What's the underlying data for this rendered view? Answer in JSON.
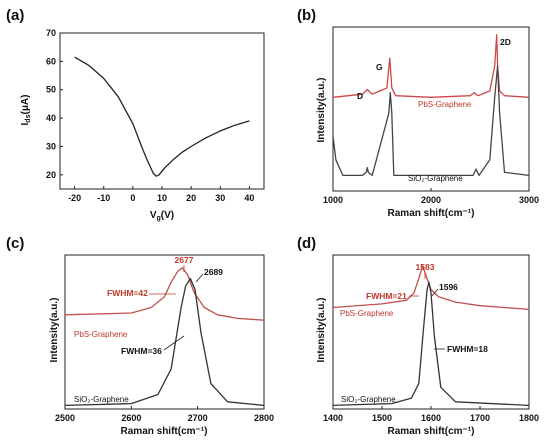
{
  "panels": {
    "a": "(a)",
    "b": "(b)",
    "c": "(c)",
    "d": "(d)"
  },
  "chart_data": [
    {
      "id": "a",
      "type": "line",
      "xlabel": "Vg(V)",
      "ylabel": "Ids(μA)",
      "xlim": [
        -25,
        45
      ],
      "ylim": [
        15,
        70
      ],
      "xticks": [
        "-20",
        "-10",
        "0",
        "10",
        "20",
        "30",
        "40"
      ],
      "yticks": [
        "20",
        "30",
        "40",
        "50",
        "60",
        "70"
      ],
      "series": [
        {
          "color": "#222222",
          "x": [
            -20,
            -15,
            -10,
            -5,
            0,
            3,
            5,
            7,
            8,
            9,
            11,
            14,
            17,
            20,
            25,
            30,
            35,
            40
          ],
          "y": [
            61.5,
            58.5,
            54,
            47.5,
            38,
            30,
            25,
            20.5,
            19.5,
            20,
            22.5,
            25.5,
            28,
            30,
            33,
            35.5,
            37.5,
            39
          ]
        }
      ]
    },
    {
      "id": "b",
      "type": "line",
      "xlabel": "Raman shift(cm⁻¹)",
      "ylabel": "Intensity(a.u.)",
      "xlim": [
        1000,
        3000
      ],
      "xticks": [
        "1000",
        "2000",
        "3000"
      ],
      "peak_labels": [
        "D",
        "G",
        "2D"
      ],
      "series": [
        {
          "name": "PbS-Graphene",
          "color": "#d04545",
          "x": [
            1000,
            1300,
            1350,
            1400,
            1550,
            1580,
            1600,
            1640,
            2000,
            2400,
            2440,
            2480,
            2600,
            2650,
            2670,
            2680,
            2700,
            2750,
            3000
          ],
          "y": [
            0.6,
            0.62,
            0.65,
            0.62,
            0.66,
            0.85,
            0.66,
            0.61,
            0.6,
            0.61,
            0.63,
            0.61,
            0.64,
            0.8,
            1.0,
            0.8,
            0.64,
            0.61,
            0.6
          ]
        },
        {
          "name": "SiO₂-Graphene",
          "color": "#444444",
          "x": [
            1000,
            1030,
            1100,
            1300,
            1340,
            1350,
            1360,
            1400,
            1570,
            1585,
            1600,
            1620,
            2000,
            2430,
            2460,
            2490,
            2600,
            2650,
            2680,
            2700,
            2750,
            3000
          ],
          "y": [
            0.35,
            0.2,
            0.1,
            0.1,
            0.12,
            0.15,
            0.12,
            0.1,
            0.5,
            0.63,
            0.5,
            0.1,
            0.1,
            0.1,
            0.14,
            0.1,
            0.2,
            0.6,
            0.8,
            0.5,
            0.12,
            0.1
          ]
        }
      ]
    },
    {
      "id": "c",
      "type": "line",
      "xlabel": "Raman shift(cm⁻¹)",
      "ylabel": "Intensity(a.u.)",
      "xlim": [
        2500,
        2800
      ],
      "xticks": [
        "2500",
        "2600",
        "2700",
        "2800"
      ],
      "annotations": {
        "pbs_peak": "2677",
        "pbs_fwhm": "FWHM=42",
        "sio2_peak": "2689",
        "sio2_fwhm": "FWHM=36"
      },
      "series": [
        {
          "name": "PbS-Graphene",
          "color": "#c0504d",
          "x": [
            2500,
            2600,
            2630,
            2650,
            2660,
            2670,
            2677,
            2685,
            2695,
            2710,
            2730,
            2760,
            2800
          ],
          "y": [
            0.52,
            0.53,
            0.56,
            0.62,
            0.7,
            0.76,
            0.78,
            0.74,
            0.64,
            0.56,
            0.52,
            0.5,
            0.49
          ]
        },
        {
          "name": "SiO₂-Graphene",
          "color": "#333333",
          "x": [
            2500,
            2600,
            2640,
            2660,
            2675,
            2682,
            2689,
            2696,
            2705,
            2720,
            2745,
            2800
          ],
          "y": [
            0.02,
            0.03,
            0.08,
            0.22,
            0.56,
            0.68,
            0.72,
            0.66,
            0.42,
            0.14,
            0.04,
            0.02
          ]
        }
      ]
    },
    {
      "id": "d",
      "type": "line",
      "xlabel": "Raman shift(cm⁻¹)",
      "ylabel": "Intensity(a.u.)",
      "xlim": [
        1400,
        1800
      ],
      "xticks": [
        "1400",
        "1500",
        "1600",
        "1700",
        "1800"
      ],
      "annotations": {
        "pbs_peak": "1583",
        "pbs_fwhm": "FWHM=21",
        "sio2_peak": "1596",
        "sio2_fwhm": "FWHM=18"
      },
      "series": [
        {
          "name": "PbS-Graphene",
          "color": "#c0504d",
          "x": [
            1400,
            1500,
            1550,
            1565,
            1575,
            1583,
            1592,
            1600,
            1615,
            1650,
            1700,
            1800
          ],
          "y": [
            0.56,
            0.58,
            0.6,
            0.64,
            0.72,
            0.79,
            0.72,
            0.66,
            0.62,
            0.59,
            0.57,
            0.55
          ]
        },
        {
          "name": "SiO₂-Graphene",
          "color": "#333333",
          "x": [
            1400,
            1520,
            1560,
            1575,
            1585,
            1592,
            1596,
            1600,
            1607,
            1620,
            1650,
            1800
          ],
          "y": [
            0.02,
            0.03,
            0.06,
            0.14,
            0.45,
            0.66,
            0.7,
            0.64,
            0.4,
            0.12,
            0.04,
            0.02
          ]
        }
      ]
    }
  ]
}
